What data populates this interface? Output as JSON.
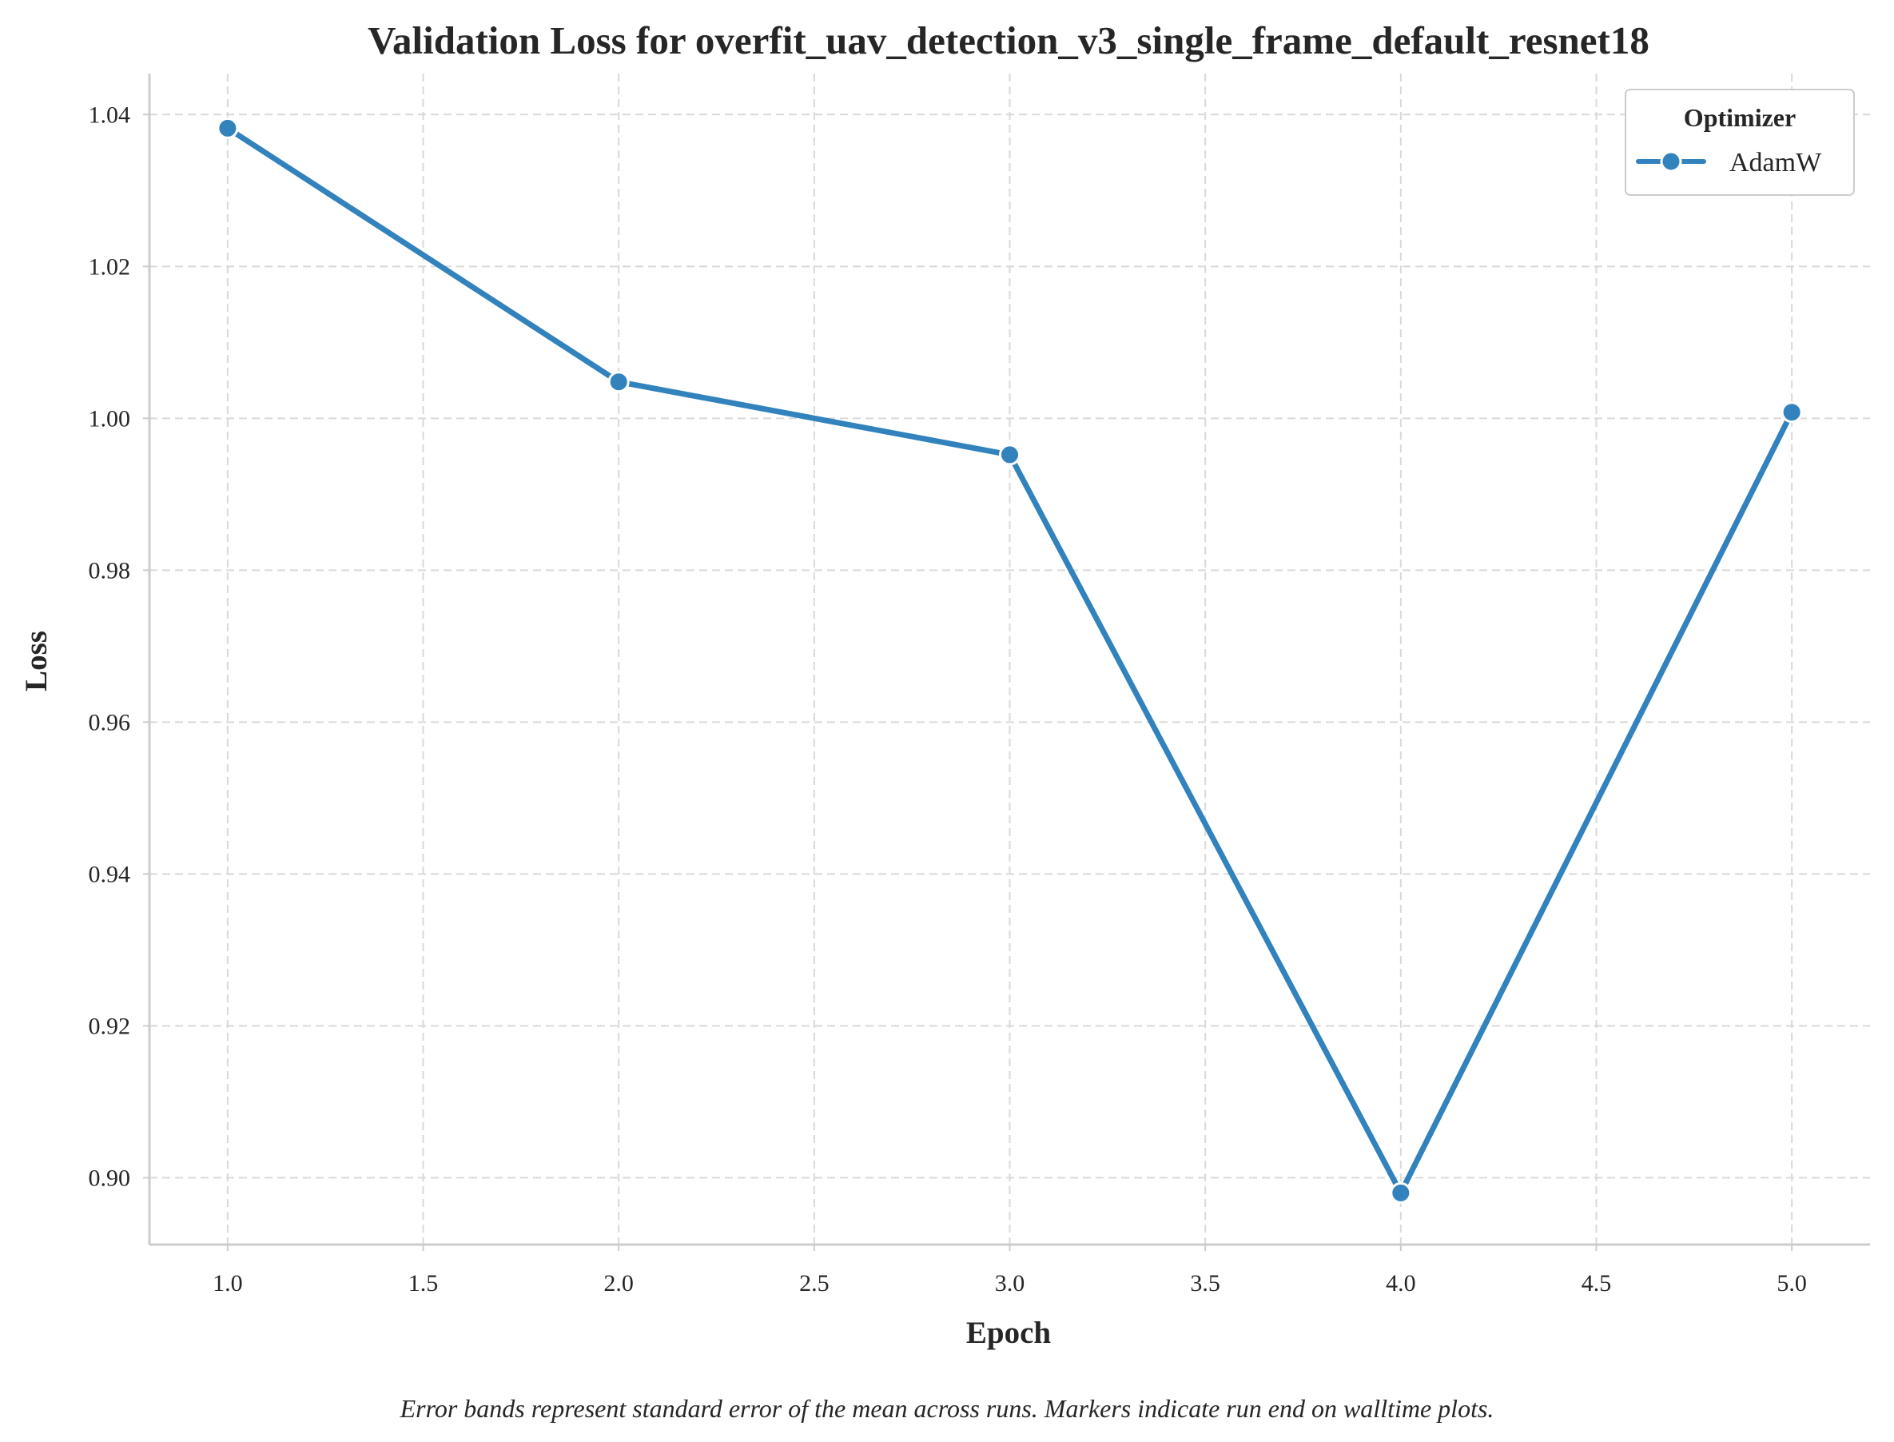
{
  "chart_data": {
    "type": "line",
    "title": "Validation Loss for overfit_uav_detection_v3_single_frame_default_resnet18",
    "xlabel": "Epoch",
    "ylabel": "Loss",
    "xlim": [
      0.8,
      5.2
    ],
    "ylim": [
      0.8912,
      1.0454
    ],
    "xticks": [
      1.0,
      1.5,
      2.0,
      2.5,
      3.0,
      3.5,
      4.0,
      4.5,
      5.0
    ],
    "xtick_labels": [
      "1.0",
      "1.5",
      "2.0",
      "2.5",
      "3.0",
      "3.5",
      "4.0",
      "4.5",
      "5.0"
    ],
    "yticks": [
      0.9,
      0.92,
      0.94,
      0.96,
      0.98,
      1.0,
      1.02,
      1.04
    ],
    "ytick_labels": [
      "0.90",
      "0.92",
      "0.94",
      "0.96",
      "0.98",
      "1.00",
      "1.02",
      "1.04"
    ],
    "grid": true,
    "legend": {
      "title": "Optimizer",
      "placement": "top-right"
    },
    "series": [
      {
        "name": "AdamW",
        "color": "#3182bd",
        "x": [
          1,
          2,
          3,
          4,
          5
        ],
        "y": [
          1.0382,
          1.0048,
          0.9952,
          0.898,
          1.0008
        ]
      }
    ],
    "caption": "Error bands represent standard error of the mean across runs. Markers indicate run end on walltime plots."
  }
}
